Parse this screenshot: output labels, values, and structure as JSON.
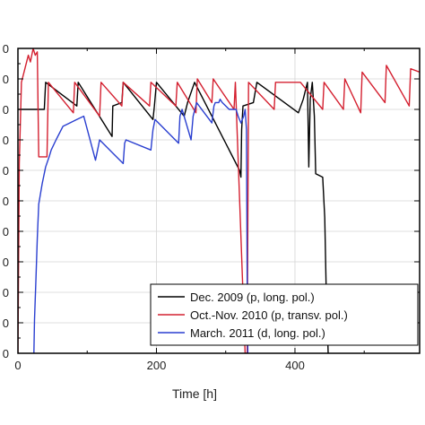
{
  "chart_data": {
    "type": "line",
    "title": "",
    "xlabel": "Time [h]",
    "ylabel": "",
    "xlim": [
      0,
      580
    ],
    "ylim": [
      0,
      90
    ],
    "x_ticks": [
      0,
      200,
      400
    ],
    "x_tick_labels": [
      "0",
      "200",
      "400"
    ],
    "y_tick_labels": [
      "0",
      "0",
      "0",
      "0",
      "0",
      "0",
      "0",
      "0",
      "0",
      "0",
      "0"
    ],
    "grid": true,
    "legend_position": "bottom-right",
    "series": [
      {
        "name": "Dec. 2009 (p, long. pol.)",
        "color": "#000000",
        "points": [
          [
            0,
            72
          ],
          [
            38,
            72
          ],
          [
            40,
            80
          ],
          [
            85,
            73
          ],
          [
            87,
            80
          ],
          [
            136,
            64
          ],
          [
            137,
            73
          ],
          [
            150,
            74
          ],
          [
            152,
            80
          ],
          [
            195,
            69
          ],
          [
            197,
            73
          ],
          [
            200,
            80
          ],
          [
            240,
            70
          ],
          [
            245,
            74
          ],
          [
            255,
            80
          ],
          [
            320,
            54
          ],
          [
            322,
            52
          ],
          [
            323,
            66
          ],
          [
            325,
            73
          ],
          [
            340,
            74
          ],
          [
            345,
            80
          ],
          [
            405,
            71
          ],
          [
            412,
            75
          ],
          [
            418,
            80
          ],
          [
            420,
            55
          ],
          [
            422,
            75
          ],
          [
            425,
            80
          ],
          [
            428,
            70
          ],
          [
            430,
            53
          ],
          [
            440,
            52
          ],
          [
            443,
            40
          ],
          [
            445,
            20
          ],
          [
            448,
            0
          ]
        ]
      },
      {
        "name": "Oct.-Nov. 2010 (p, transv. pol.)",
        "color": "#d42030",
        "points": [
          [
            0,
            0
          ],
          [
            2,
            56
          ],
          [
            5,
            80
          ],
          [
            15,
            88
          ],
          [
            18,
            86
          ],
          [
            22,
            90
          ],
          [
            25,
            88
          ],
          [
            28,
            89
          ],
          [
            30,
            58
          ],
          [
            42,
            58
          ],
          [
            44,
            80
          ],
          [
            80,
            71
          ],
          [
            82,
            80
          ],
          [
            118,
            70
          ],
          [
            120,
            80
          ],
          [
            150,
            73
          ],
          [
            152,
            80
          ],
          [
            190,
            73
          ],
          [
            192,
            80
          ],
          [
            228,
            73
          ],
          [
            230,
            80
          ],
          [
            257,
            71
          ],
          [
            259,
            81
          ],
          [
            280,
            74
          ],
          [
            282,
            81
          ],
          [
            312,
            72
          ],
          [
            314,
            80
          ],
          [
            328,
            0
          ],
          [
            331,
            0
          ],
          [
            333,
            80
          ],
          [
            370,
            72
          ],
          [
            372,
            80
          ],
          [
            406,
            80
          ],
          [
            408,
            80
          ],
          [
            440,
            72
          ],
          [
            442,
            80
          ],
          [
            470,
            72
          ],
          [
            472,
            81
          ],
          [
            495,
            71
          ],
          [
            497,
            83
          ],
          [
            530,
            74
          ],
          [
            532,
            85
          ],
          [
            565,
            73
          ],
          [
            567,
            84
          ],
          [
            580,
            83
          ]
        ]
      },
      {
        "name": "March. 2011 (d, long. pol.)",
        "color": "#2a3fd0",
        "points": [
          [
            23,
            0
          ],
          [
            24,
            10
          ],
          [
            26,
            22
          ],
          [
            28,
            34
          ],
          [
            30,
            44
          ],
          [
            35,
            50
          ],
          [
            40,
            55
          ],
          [
            45,
            58
          ],
          [
            48,
            60
          ],
          [
            55,
            63
          ],
          [
            65,
            67
          ],
          [
            75,
            68
          ],
          [
            85,
            69
          ],
          [
            95,
            70
          ],
          [
            112,
            57
          ],
          [
            116,
            61
          ],
          [
            118,
            63
          ],
          [
            152,
            56
          ],
          [
            154,
            62
          ],
          [
            156,
            63
          ],
          [
            192,
            60
          ],
          [
            195,
            66
          ],
          [
            198,
            69
          ],
          [
            232,
            62
          ],
          [
            234,
            70
          ],
          [
            237,
            72
          ],
          [
            250,
            63
          ],
          [
            253,
            70
          ],
          [
            258,
            74
          ],
          [
            280,
            68
          ],
          [
            283,
            73
          ],
          [
            285,
            74
          ],
          [
            290,
            74
          ],
          [
            292,
            75
          ],
          [
            295,
            74
          ],
          [
            305,
            72
          ],
          [
            310,
            72
          ],
          [
            315,
            72
          ],
          [
            318,
            70
          ],
          [
            322,
            68
          ],
          [
            326,
            70
          ],
          [
            328,
            72
          ],
          [
            330,
            66
          ],
          [
            331,
            20
          ],
          [
            332,
            0
          ]
        ]
      }
    ]
  }
}
